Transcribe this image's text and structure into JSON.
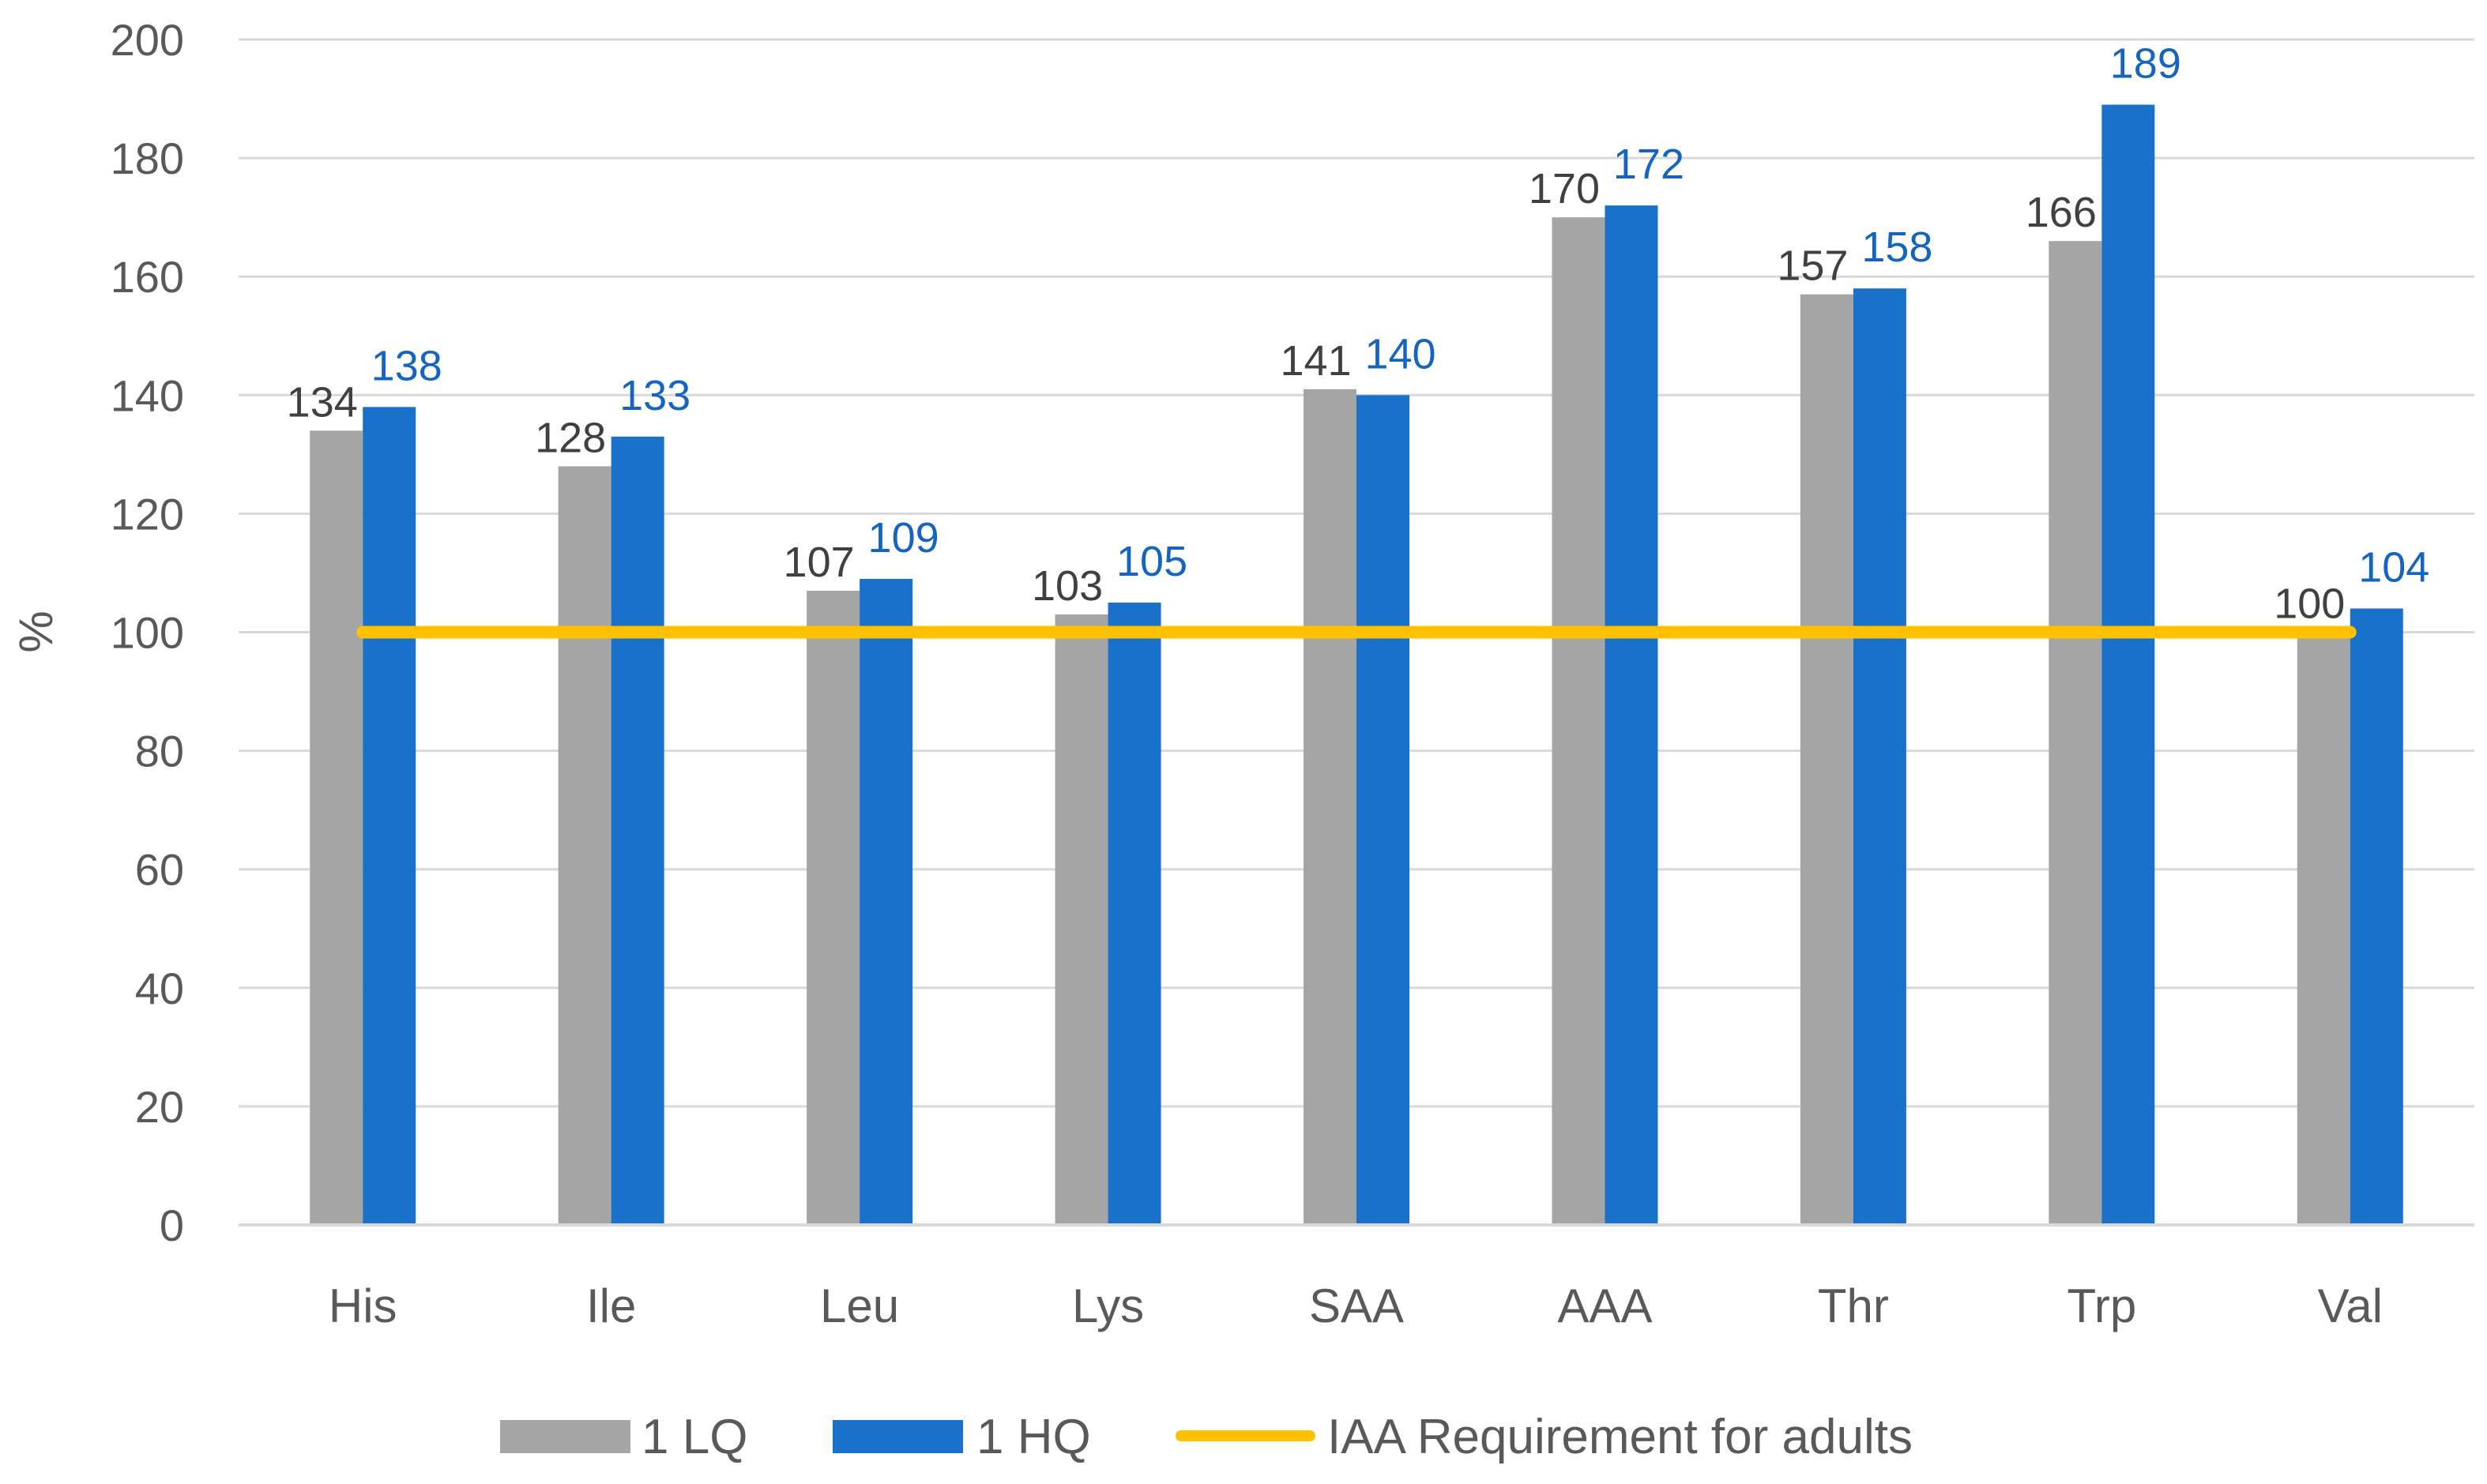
{
  "chart_data": {
    "type": "bar",
    "title": "",
    "xlabel": "",
    "ylabel": "%",
    "ylim": [
      0,
      200
    ],
    "yticks": [
      0,
      20,
      40,
      60,
      80,
      100,
      120,
      140,
      160,
      180,
      200
    ],
    "grid": true,
    "categories": [
      "His",
      "Ile",
      "Leu",
      "Lys",
      "SAA",
      "AAA",
      "Thr",
      "Trp",
      "Val"
    ],
    "series": [
      {
        "name": "1 LQ",
        "type": "bar",
        "color": "#A5A5A5",
        "label_color": "#404040",
        "values": [
          134,
          128,
          107,
          103,
          141,
          170,
          157,
          166,
          100
        ]
      },
      {
        "name": "1 HQ",
        "type": "bar",
        "color": "#1971C9",
        "label_color": "#1565C0",
        "values": [
          138,
          133,
          109,
          105,
          140,
          172,
          158,
          189,
          104
        ]
      },
      {
        "name": "IAA Requirement for adults",
        "type": "line",
        "color": "#FFC000",
        "values": [
          100,
          100,
          100,
          100,
          100,
          100,
          100,
          100,
          100
        ]
      }
    ],
    "legend_position": "bottom"
  }
}
